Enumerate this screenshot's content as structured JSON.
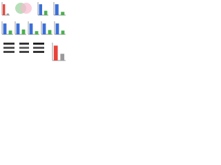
{
  "chart_data": [
    {
      "type": "bar",
      "categories": [
        null,
        null
      ],
      "values": [
        1.0,
        0.15
      ],
      "colors": [
        "#e8433a",
        "#9a9a9a"
      ],
      "ylim": [
        0,
        1.2
      ]
    },
    {
      "type": "bar",
      "categories": [
        null,
        null
      ],
      "values": [
        1.0,
        0.4
      ],
      "colors": [
        "#3a6fd8",
        "#4caf50"
      ],
      "ylim": [
        0,
        1.2
      ]
    },
    {
      "type": "bar",
      "categories": [
        null,
        null
      ],
      "values": [
        1.0,
        0.3
      ],
      "colors": [
        "#3a6fd8",
        "#4caf50"
      ],
      "ylim": [
        0,
        1.2
      ]
    },
    {
      "type": "bar",
      "categories": [
        null,
        null
      ],
      "values": [
        1.0,
        0.35
      ],
      "colors": [
        "#3a6fd8",
        "#4caf50"
      ],
      "ylim": [
        0,
        1.2
      ]
    },
    {
      "type": "bar",
      "categories": [
        null,
        null
      ],
      "values": [
        1.0,
        0.45
      ],
      "colors": [
        "#3a6fd8",
        "#4caf50"
      ],
      "ylim": [
        0,
        1.2
      ]
    },
    {
      "type": "bar",
      "categories": [
        null,
        null
      ],
      "values": [
        1.0,
        0.3
      ],
      "colors": [
        "#3a6fd8",
        "#4caf50"
      ],
      "ylim": [
        0,
        1.2
      ]
    },
    {
      "type": "bar",
      "categories": [
        null,
        null
      ],
      "values": [
        1.0,
        0.4
      ],
      "colors": [
        "#3a6fd8",
        "#4caf50"
      ],
      "ylim": [
        0,
        1.2
      ]
    },
    {
      "type": "bar",
      "categories": [
        null,
        null
      ],
      "values": [
        1.0,
        0.35
      ],
      "colors": [
        "#3a6fd8",
        "#4caf50"
      ],
      "ylim": [
        0,
        1.2
      ]
    },
    {
      "type": "bar",
      "categories": [
        null,
        null
      ],
      "values": [
        1.0,
        0.45
      ],
      "colors": [
        "#e8433a",
        "#9a9a9a"
      ],
      "ylim": [
        0,
        1.2
      ]
    }
  ]
}
